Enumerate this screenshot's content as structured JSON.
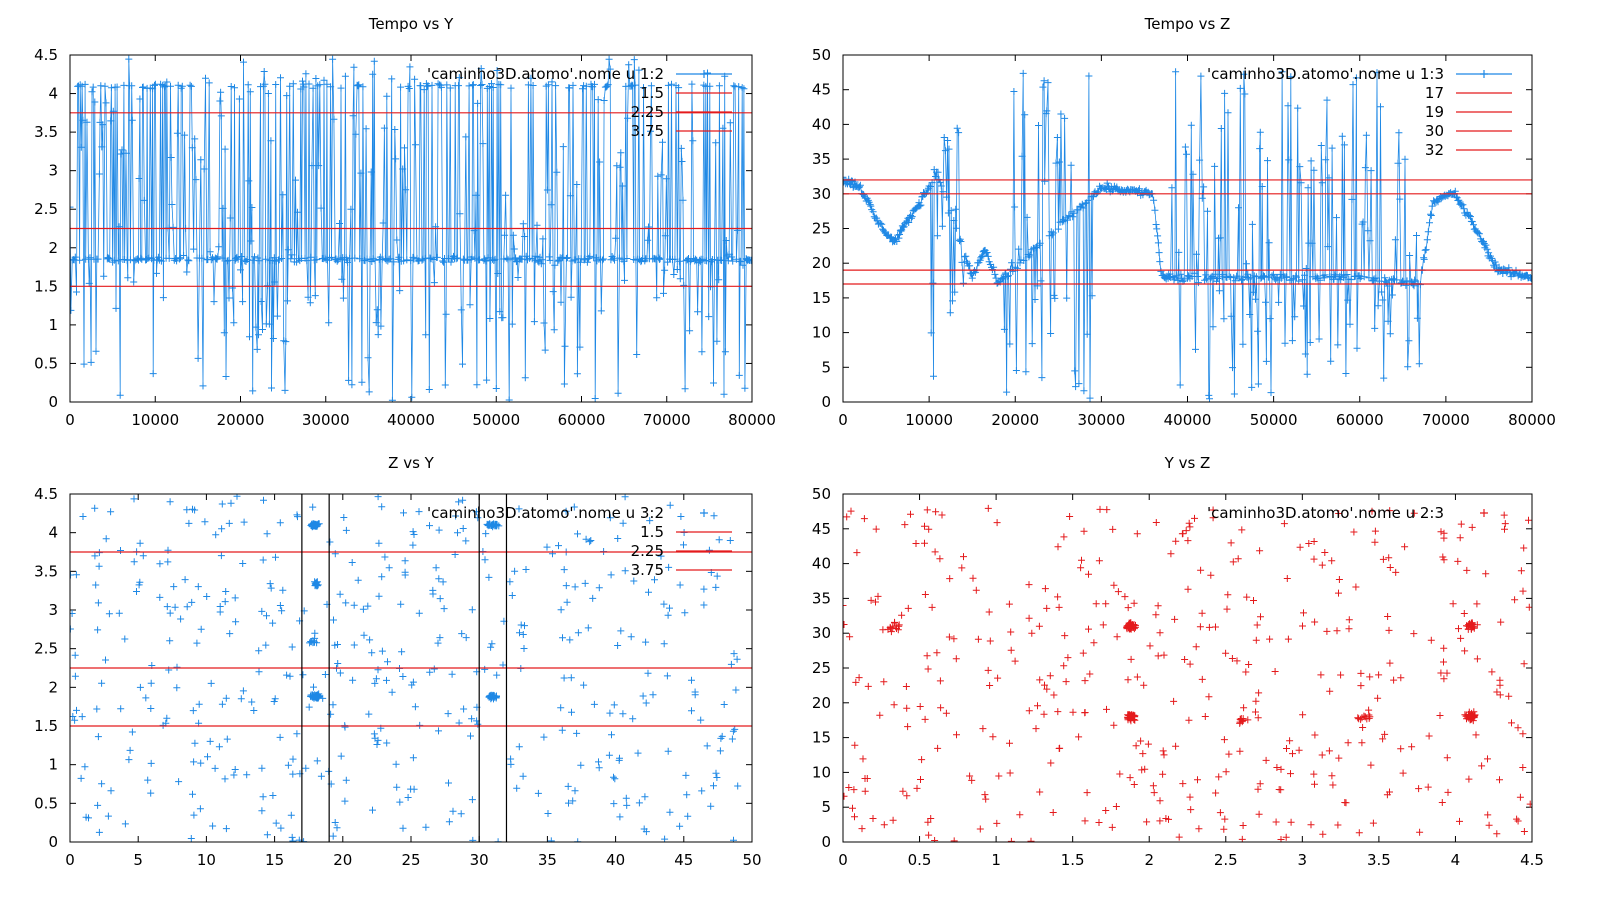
{
  "colors": {
    "blue": "#1e88e5",
    "red": "#e41a1c",
    "black": "#000000"
  },
  "chart_data": [
    {
      "type": "line",
      "title": "Tempo vs Y",
      "xlim": [
        0,
        80000
      ],
      "ylim": [
        0,
        4.5
      ],
      "xticks": [
        0,
        10000,
        20000,
        30000,
        40000,
        50000,
        60000,
        70000,
        80000
      ],
      "yticks": [
        0,
        0.5,
        1,
        1.5,
        2,
        2.5,
        3,
        3.5,
        4,
        4.5
      ],
      "xtick_labels": [
        "0",
        "10000",
        "20000",
        "30000",
        "40000",
        "50000",
        "60000",
        "70000",
        "80000"
      ],
      "ytick_labels": [
        "0",
        "0.5",
        "1",
        "1.5",
        "2",
        "2.5",
        "3",
        "3.5",
        "4",
        "4.5"
      ],
      "legend_position": "top-right",
      "series": [
        {
          "name": "'caminho3D.atomo'.nome u 1:2",
          "color": "#1e88e5",
          "style": "linespoints",
          "model": "ty"
        }
      ],
      "hlines": [
        {
          "name": "1.5",
          "y": 1.5,
          "color": "#e41a1c"
        },
        {
          "name": "2.25",
          "y": 2.25,
          "color": "#e41a1c"
        },
        {
          "name": "3.75",
          "y": 3.75,
          "color": "#e41a1c"
        }
      ],
      "vlines": []
    },
    {
      "type": "line",
      "title": "Tempo vs Z",
      "xlim": [
        0,
        80000
      ],
      "ylim": [
        0,
        50
      ],
      "xticks": [
        0,
        10000,
        20000,
        30000,
        40000,
        50000,
        60000,
        70000,
        80000
      ],
      "yticks": [
        0,
        5,
        10,
        15,
        20,
        25,
        30,
        35,
        40,
        45,
        50
      ],
      "xtick_labels": [
        "0",
        "10000",
        "20000",
        "30000",
        "40000",
        "50000",
        "60000",
        "70000",
        "80000"
      ],
      "ytick_labels": [
        "0",
        "5",
        "10",
        "15",
        "20",
        "25",
        "30",
        "35",
        "40",
        "45",
        "50"
      ],
      "legend_position": "top-right",
      "series": [
        {
          "name": "'caminho3D.atomo'.nome u 1:3",
          "color": "#1e88e5",
          "style": "linespoints",
          "model": "tz"
        }
      ],
      "hlines": [
        {
          "name": "17",
          "y": 17,
          "color": "#e41a1c"
        },
        {
          "name": "19",
          "y": 19,
          "color": "#e41a1c"
        },
        {
          "name": "30",
          "y": 30,
          "color": "#e41a1c"
        },
        {
          "name": "32",
          "y": 32,
          "color": "#e41a1c"
        }
      ],
      "vlines": []
    },
    {
      "type": "scatter",
      "title": "Z vs Y",
      "xlim": [
        0,
        50
      ],
      "ylim": [
        0,
        4.5
      ],
      "xticks": [
        0,
        5,
        10,
        15,
        20,
        25,
        30,
        35,
        40,
        45,
        50
      ],
      "yticks": [
        0,
        0.5,
        1,
        1.5,
        2,
        2.5,
        3,
        3.5,
        4,
        4.5
      ],
      "xtick_labels": [
        "0",
        "5",
        "10",
        "15",
        "20",
        "25",
        "30",
        "35",
        "40",
        "45",
        "50"
      ],
      "ytick_labels": [
        "0",
        "0.5",
        "1",
        "1.5",
        "2",
        "2.5",
        "3",
        "3.5",
        "4",
        "4.5"
      ],
      "legend_position": "top-right",
      "series": [
        {
          "name": "'caminho3D.atomo'.nome u 3:2",
          "color": "#1e88e5",
          "style": "points",
          "model": "zy"
        }
      ],
      "hlines": [
        {
          "name": "1.5",
          "y": 1.5,
          "color": "#e41a1c"
        },
        {
          "name": "2.25",
          "y": 2.25,
          "color": "#e41a1c"
        },
        {
          "name": "3.75",
          "y": 3.75,
          "color": "#e41a1c"
        }
      ],
      "vlines": [
        {
          "x": 17,
          "color": "#000000"
        },
        {
          "x": 19,
          "color": "#000000"
        },
        {
          "x": 30,
          "color": "#000000"
        },
        {
          "x": 32,
          "color": "#000000"
        }
      ]
    },
    {
      "type": "scatter",
      "title": "Y vs Z",
      "xlim": [
        0,
        4.5
      ],
      "ylim": [
        0,
        50
      ],
      "xticks": [
        0,
        0.5,
        1,
        1.5,
        2,
        2.5,
        3,
        3.5,
        4,
        4.5
      ],
      "yticks": [
        0,
        5,
        10,
        15,
        20,
        25,
        30,
        35,
        40,
        45,
        50
      ],
      "xtick_labels": [
        "0",
        "0.5",
        "1",
        "1.5",
        "2",
        "2.5",
        "3",
        "3.5",
        "4",
        "4.5"
      ],
      "ytick_labels": [
        "0",
        "5",
        "10",
        "15",
        "20",
        "25",
        "30",
        "35",
        "40",
        "45",
        "50"
      ],
      "legend_position": "top-right",
      "series": [
        {
          "name": "'caminho3D.atomo'.nome u 2:3",
          "color": "#e41a1c",
          "style": "points",
          "model": "yz"
        }
      ],
      "hlines": [],
      "vlines": []
    }
  ]
}
